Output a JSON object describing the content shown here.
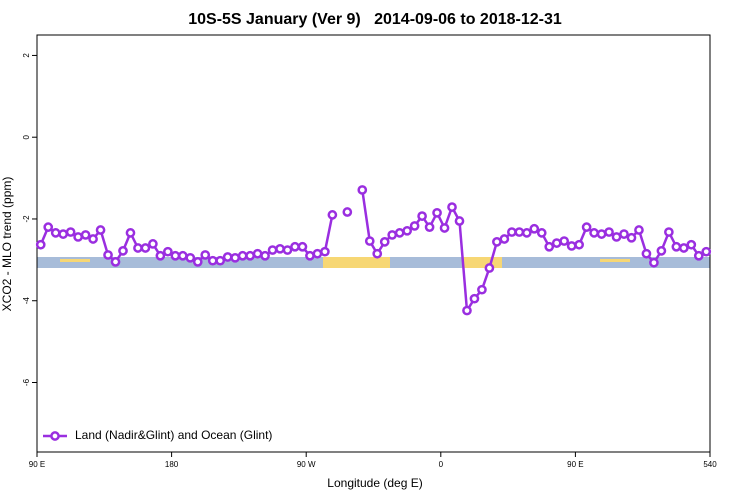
{
  "chart_data": {
    "type": "line",
    "title": "10S-5S January (Ver 9)   2014-09-06 to 2018-12-31",
    "x_label": "Longitude (deg E)",
    "y_label": "XCO2 - MLO trend (ppm)",
    "x": [
      92.5,
      97.5,
      102.5,
      107.5,
      112.5,
      117.5,
      122.5,
      127.5,
      132.5,
      137.5,
      142.5,
      147.5,
      152.5,
      157.5,
      162.5,
      167.5,
      172.5,
      177.5,
      182.5,
      187.5,
      192.5,
      197.5,
      202.5,
      207.5,
      212.5,
      217.5,
      222.5,
      227.5,
      232.5,
      237.5,
      242.5,
      247.5,
      252.5,
      257.5,
      262.5,
      267.5,
      272.5,
      277.5,
      282.5,
      287.5,
      292.5,
      297.5,
      302.5,
      307.5,
      312.5,
      317.5,
      322.5,
      327.5,
      332.5,
      337.5,
      342.5,
      347.5,
      352.5,
      357.5,
      362.5,
      367.5,
      372.5,
      377.5,
      382.5,
      387.5,
      392.5,
      397.5,
      402.5,
      407.5,
      412.5,
      417.5,
      422.5,
      427.5,
      432.5,
      437.5,
      442.5,
      447.5,
      452.5,
      457.5,
      462.5,
      467.5,
      472.5,
      477.5,
      482.5,
      487.5,
      492.5,
      497.5,
      502.5,
      507.5,
      512.5,
      517.5,
      522.5,
      527.5,
      532.5,
      537.5
    ],
    "series": [
      {
        "name": "Land (Nadir&Glint) and Ocean (Glint)",
        "color": "#9a2ee0",
        "values": [
          -2.63,
          -2.2,
          -2.34,
          -2.37,
          -2.32,
          -2.44,
          -2.39,
          -2.49,
          -2.27,
          -2.88,
          -3.05,
          -2.78,
          -2.34,
          -2.71,
          -2.71,
          -2.61,
          -2.9,
          -2.8,
          -2.9,
          -2.9,
          -2.95,
          -3.05,
          -2.88,
          -3.02,
          -3.02,
          -2.93,
          -2.95,
          -2.9,
          -2.9,
          -2.85,
          -2.9,
          -2.76,
          -2.73,
          -2.76,
          -2.68,
          -2.68,
          -2.9,
          -2.85,
          -2.8,
          -1.9,
          null,
          -1.83,
          null,
          -1.29,
          -2.54,
          -2.85,
          -2.56,
          -2.39,
          -2.34,
          -2.29,
          -2.17,
          -1.93,
          -2.2,
          -1.85,
          -2.22,
          -1.71,
          -2.05,
          -4.24,
          -3.95,
          -3.73,
          -3.2,
          -2.56,
          -2.49,
          -2.32,
          -2.32,
          -2.34,
          -2.24,
          -2.34,
          -2.68,
          -2.59,
          -2.54,
          -2.66,
          -2.63,
          -2.2,
          -2.34,
          -2.37,
          -2.32,
          -2.44,
          -2.37,
          -2.46,
          -2.27,
          -2.85,
          -3.07,
          -2.78,
          -2.32,
          -2.68,
          -2.71,
          -2.63,
          -2.9,
          -2.8
        ]
      }
    ],
    "xlim": [
      90,
      540
    ],
    "xticks": [
      {
        "value": 90,
        "label": "90 E"
      },
      180,
      {
        "value": 270,
        "label": "90 W"
      },
      {
        "value": 360,
        "label": "0"
      },
      {
        "value": 450,
        "label": "90 E"
      },
      540
    ],
    "ylim": [
      -7.7,
      2.5
    ],
    "yticks": [
      -6,
      -4,
      -2,
      0,
      2
    ],
    "legend": "bottomleft"
  }
}
